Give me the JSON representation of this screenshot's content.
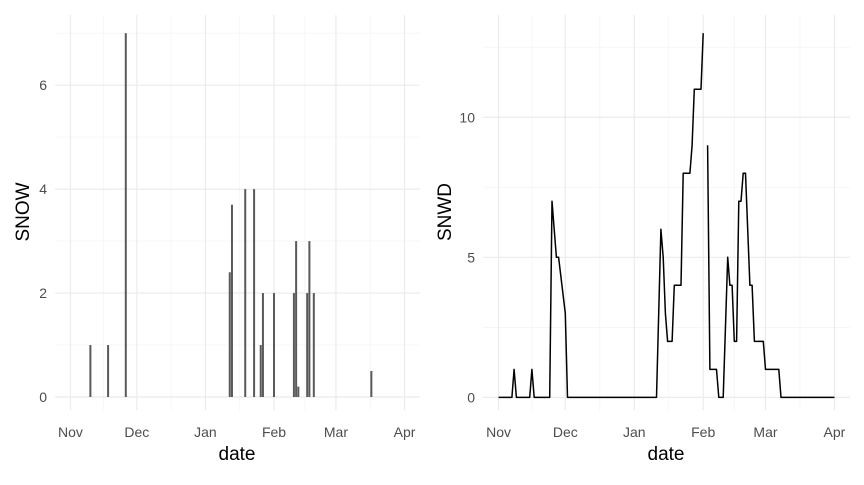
{
  "chart_data": [
    {
      "type": "bar",
      "xlabel": "date",
      "ylabel": "SNOW",
      "x_ticks": [
        "Nov",
        "Dec",
        "Jan",
        "Feb",
        "Mar",
        "Apr"
      ],
      "y_ticks": [
        0,
        2,
        4,
        6
      ],
      "xlim": [
        "Oct 25",
        "Apr 8"
      ],
      "ylim": [
        -0.25,
        7.35
      ],
      "grid": true,
      "bar_color": "#595959",
      "points": [
        {
          "x": "Nov 10",
          "y": 1
        },
        {
          "x": "Nov 18",
          "y": 1
        },
        {
          "x": "Nov 26",
          "y": 7
        },
        {
          "x": "Jan 12",
          "y": 2.4
        },
        {
          "x": "Jan 13",
          "y": 3.7
        },
        {
          "x": "Jan 19",
          "y": 4
        },
        {
          "x": "Jan 23",
          "y": 4
        },
        {
          "x": "Jan 26",
          "y": 1
        },
        {
          "x": "Jan 27",
          "y": 2
        },
        {
          "x": "Feb 1",
          "y": 2
        },
        {
          "x": "Feb 10",
          "y": 2
        },
        {
          "x": "Feb 11",
          "y": 3
        },
        {
          "x": "Feb 12",
          "y": 0.2
        },
        {
          "x": "Feb 16",
          "y": 2
        },
        {
          "x": "Feb 17",
          "y": 3
        },
        {
          "x": "Feb 19",
          "y": 2
        },
        {
          "x": "Mar 17",
          "y": 0.5
        }
      ]
    },
    {
      "type": "line",
      "xlabel": "date",
      "ylabel": "SNWD",
      "x_ticks": [
        "Nov",
        "Dec",
        "Jan",
        "Feb",
        "Mar",
        "Apr"
      ],
      "y_ticks": [
        0,
        5,
        10
      ],
      "xlim": [
        "Oct 25",
        "Apr 8"
      ],
      "ylim": [
        -0.45,
        13.65
      ],
      "grid": true,
      "line_color": "#000000",
      "points": [
        {
          "x": "Nov 1",
          "y": 0
        },
        {
          "x": "Nov 7",
          "y": 0
        },
        {
          "x": "Nov 8",
          "y": 1
        },
        {
          "x": "Nov 9",
          "y": 0
        },
        {
          "x": "Nov 15",
          "y": 0
        },
        {
          "x": "Nov 16",
          "y": 1
        },
        {
          "x": "Nov 17",
          "y": 0
        },
        {
          "x": "Nov 24",
          "y": 0
        },
        {
          "x": "Nov 25",
          "y": 7
        },
        {
          "x": "Nov 27",
          "y": 5
        },
        {
          "x": "Nov 28",
          "y": 5
        },
        {
          "x": "Dec 1",
          "y": 3
        },
        {
          "x": "Dec 2",
          "y": 0
        },
        {
          "x": "Jan 11",
          "y": 0
        },
        {
          "x": "Jan 13",
          "y": 6
        },
        {
          "x": "Jan 14",
          "y": 5
        },
        {
          "x": "Jan 15",
          "y": 3
        },
        {
          "x": "Jan 16",
          "y": 2
        },
        {
          "x": "Jan 18",
          "y": 2
        },
        {
          "x": "Jan 19",
          "y": 4
        },
        {
          "x": "Jan 22",
          "y": 4
        },
        {
          "x": "Jan 23",
          "y": 8
        },
        {
          "x": "Jan 26",
          "y": 8
        },
        {
          "x": "Jan 27",
          "y": 9
        },
        {
          "x": "Jan 28",
          "y": 11
        },
        {
          "x": "Jan 31",
          "y": 11
        },
        {
          "x": "Feb 1",
          "y": 13
        },
        {
          "x": "Feb 2",
          "y": null
        },
        {
          "x": "Feb 3",
          "y": 9
        },
        {
          "x": "Feb 4",
          "y": 1
        },
        {
          "x": "Feb 7",
          "y": 1
        },
        {
          "x": "Feb 8",
          "y": 0
        },
        {
          "x": "Feb 10",
          "y": 0
        },
        {
          "x": "Feb 12",
          "y": 5
        },
        {
          "x": "Feb 13",
          "y": 4
        },
        {
          "x": "Feb 14",
          "y": 4
        },
        {
          "x": "Feb 15",
          "y": 2
        },
        {
          "x": "Feb 16",
          "y": 2
        },
        {
          "x": "Feb 17",
          "y": 7
        },
        {
          "x": "Feb 18",
          "y": 7
        },
        {
          "x": "Feb 19",
          "y": 8
        },
        {
          "x": "Feb 20",
          "y": 8
        },
        {
          "x": "Feb 22",
          "y": 4
        },
        {
          "x": "Feb 23",
          "y": 4
        },
        {
          "x": "Feb 24",
          "y": 2
        },
        {
          "x": "Feb 28",
          "y": 2
        },
        {
          "x": "Mar 1",
          "y": 1
        },
        {
          "x": "Mar 7",
          "y": 1
        },
        {
          "x": "Mar 8",
          "y": 0
        },
        {
          "x": "Apr 1",
          "y": 0
        }
      ]
    }
  ]
}
